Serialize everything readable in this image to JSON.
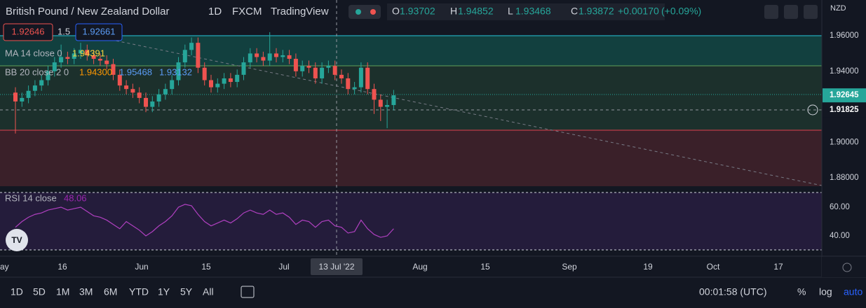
{
  "header": {
    "symbol": "British Pound / New Zealand Dollar",
    "interval": "1D",
    "exchange": "FXCM",
    "source": "TradingView",
    "ohlc": [
      {
        "label": "O",
        "value": "1.93702"
      },
      {
        "label": "H",
        "value": "1.94852"
      },
      {
        "label": "L",
        "value": "1.93468"
      },
      {
        "label": "C",
        "value": "1.93872"
      }
    ],
    "change": "+0.00170",
    "change_pct": "(+0.09%)"
  },
  "legend": {
    "bid": "1.92646",
    "spread": "1.5",
    "ask": "1.92661",
    "ma": {
      "label": "MA 14 close 0",
      "value": "1.94391"
    },
    "bb": {
      "label": "BB 20 close 2 0",
      "values": [
        "1.94300",
        "1.95468",
        "1.93132"
      ]
    },
    "rsi": {
      "label": "RSI 14 close",
      "value": "48.06"
    }
  },
  "chart": {
    "currency": "NZD",
    "candles": [
      [
        1.928,
        1.931,
        1.905,
        1.923
      ],
      [
        1.923,
        1.928,
        1.92,
        1.925
      ],
      [
        1.925,
        1.932,
        1.922,
        1.929
      ],
      [
        1.929,
        1.935,
        1.926,
        1.932
      ],
      [
        1.932,
        1.938,
        1.929,
        1.935
      ],
      [
        1.935,
        1.943,
        1.932,
        1.94
      ],
      [
        1.94,
        1.948,
        1.937,
        1.945
      ],
      [
        1.945,
        1.955,
        1.942,
        1.948
      ],
      [
        1.948,
        1.951,
        1.944,
        1.947
      ],
      [
        1.947,
        1.953,
        1.944,
        1.95
      ],
      [
        1.95,
        1.956,
        1.947,
        1.952
      ],
      [
        1.952,
        1.955,
        1.946,
        1.949
      ],
      [
        1.949,
        1.952,
        1.944,
        1.947
      ],
      [
        1.947,
        1.95,
        1.943,
        1.946
      ],
      [
        1.946,
        1.949,
        1.941,
        1.944
      ],
      [
        1.944,
        1.947,
        1.935,
        1.938
      ],
      [
        1.938,
        1.941,
        1.929,
        1.932
      ],
      [
        1.932,
        1.935,
        1.927,
        1.93
      ],
      [
        1.93,
        1.933,
        1.925,
        1.928
      ],
      [
        1.928,
        1.931,
        1.922,
        1.925
      ],
      [
        1.925,
        1.928,
        1.917,
        1.92
      ],
      [
        1.92,
        1.926,
        1.917,
        1.923
      ],
      [
        1.923,
        1.93,
        1.92,
        1.927
      ],
      [
        1.927,
        1.933,
        1.924,
        1.93
      ],
      [
        1.93,
        1.938,
        1.927,
        1.935
      ],
      [
        1.935,
        1.948,
        1.932,
        1.945
      ],
      [
        1.945,
        1.955,
        1.942,
        1.952
      ],
      [
        1.952,
        1.959,
        1.949,
        1.956
      ],
      [
        1.956,
        1.959,
        1.939,
        1.942
      ],
      [
        1.942,
        1.945,
        1.932,
        1.935
      ],
      [
        1.935,
        1.938,
        1.928,
        1.931
      ],
      [
        1.931,
        1.936,
        1.928,
        1.933
      ],
      [
        1.933,
        1.939,
        1.93,
        1.936
      ],
      [
        1.936,
        1.939,
        1.931,
        1.934
      ],
      [
        1.934,
        1.941,
        1.931,
        1.938
      ],
      [
        1.938,
        1.948,
        1.935,
        1.945
      ],
      [
        1.945,
        1.953,
        1.942,
        1.95
      ],
      [
        1.95,
        1.953,
        1.945,
        1.948
      ],
      [
        1.948,
        1.951,
        1.943,
        1.946
      ],
      [
        1.946,
        1.962,
        1.943,
        1.95
      ],
      [
        1.95,
        1.953,
        1.945,
        1.948
      ],
      [
        1.948,
        1.952,
        1.945,
        1.949
      ],
      [
        1.949,
        1.952,
        1.944,
        1.947
      ],
      [
        1.947,
        1.95,
        1.937,
        1.94
      ],
      [
        1.94,
        1.946,
        1.937,
        1.943
      ],
      [
        1.943,
        1.946,
        1.939,
        1.942
      ],
      [
        1.942,
        1.945,
        1.933,
        1.936
      ],
      [
        1.936,
        1.945,
        1.933,
        1.942
      ],
      [
        1.942,
        1.946,
        1.939,
        1.943
      ],
      [
        1.943,
        1.946,
        1.935,
        1.938
      ],
      [
        1.938,
        1.941,
        1.933,
        1.936
      ],
      [
        1.936,
        1.939,
        1.927,
        1.93
      ],
      [
        1.93,
        1.934,
        1.927,
        1.931
      ],
      [
        1.931,
        1.945,
        1.928,
        1.942
      ],
      [
        1.942,
        1.945,
        1.927,
        1.93
      ],
      [
        1.93,
        1.933,
        1.916,
        1.924
      ],
      [
        1.924,
        1.927,
        1.912,
        1.92
      ],
      [
        1.92,
        1.924,
        1.908,
        1.921
      ],
      [
        1.921,
        1.9295,
        1.918,
        1.9265
      ]
    ],
    "rsi": [
      46,
      50,
      53,
      55,
      56,
      58,
      59,
      60,
      58,
      59,
      60,
      57,
      54,
      53,
      51,
      48,
      45,
      50,
      47,
      44,
      40,
      43,
      47,
      50,
      54,
      60,
      62,
      61,
      55,
      50,
      47,
      49,
      51,
      49,
      52,
      56,
      58,
      56,
      55,
      58,
      55,
      56,
      53,
      48,
      51,
      50,
      46,
      50,
      51,
      47,
      46,
      42,
      43,
      51,
      45,
      41,
      39,
      40,
      45
    ],
    "price_ticks": [
      {
        "value": 1.96,
        "label": "1.96000"
      },
      {
        "value": 1.94,
        "label": "1.94000"
      },
      {
        "value": 1.9,
        "label": "1.90000"
      },
      {
        "value": 1.88,
        "label": "1.88000"
      }
    ],
    "price_badges": [
      {
        "value": 1.92645,
        "label": "1.92645"
      },
      {
        "value": 1.91825,
        "label": "1.91825"
      }
    ],
    "rsi_ticks": [
      {
        "value": 60,
        "label": "60.00"
      },
      {
        "value": 40,
        "label": "40.00"
      }
    ],
    "time_labels": [
      "ay",
      "16",
      "Jun",
      "15",
      "Jul",
      "Aug",
      "15",
      "Sep",
      "19",
      "Oct",
      "17"
    ],
    "crosshair_date": "13 Jul '22"
  },
  "toolbar": {
    "ranges": [
      "1D",
      "5D",
      "1M",
      "3M",
      "6M",
      "YTD",
      "1Y",
      "5Y",
      "All"
    ],
    "clock": "00:01:58 (UTC)",
    "percent": "%",
    "log": "log",
    "auto": "auto"
  }
}
